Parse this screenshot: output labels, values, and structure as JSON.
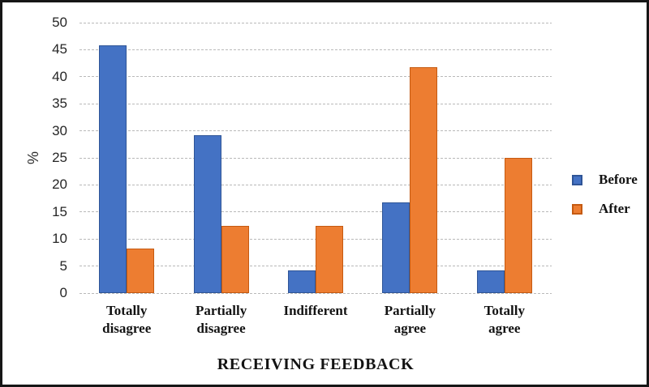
{
  "chart_data": {
    "type": "bar",
    "title": "",
    "xlabel": "RECEIVING FEEDBACK",
    "ylabel": "%",
    "categories": [
      "Totally disagree",
      "Partially disagree",
      "Indifferent",
      "Partially agree",
      "Totally agree"
    ],
    "series": [
      {
        "name": "Before",
        "values": [
          45.8,
          29.2,
          4.2,
          16.7,
          4.2
        ],
        "fill": "#4472c4",
        "border": "#2f5597"
      },
      {
        "name": "After",
        "values": [
          8.3,
          12.5,
          12.5,
          41.7,
          25.0
        ],
        "fill": "#ed7d31",
        "border": "#c55a11"
      }
    ],
    "ylim": [
      0,
      50
    ],
    "ytick_step": 5,
    "grid": true,
    "gridline_color": "#b9b9b9",
    "legend_position": "right",
    "frame_color": "#161616",
    "background": "#ffffff"
  }
}
